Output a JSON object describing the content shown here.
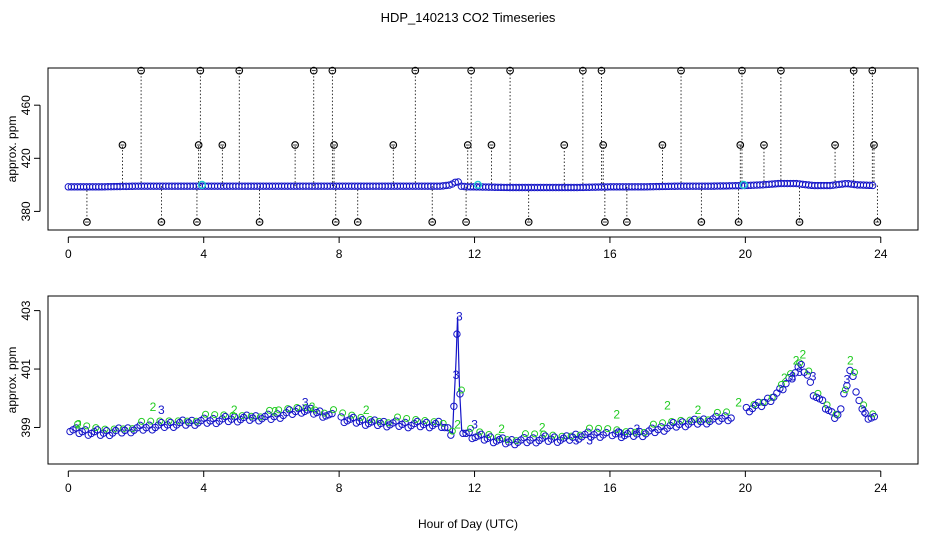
{
  "chart_data": {
    "title": "HDP_140213  CO2 Timeseries",
    "xlabel": "Hour of Day (UTC)",
    "colors": {
      "black": "#000000",
      "blue": "#1414c8",
      "green": "#22cc22",
      "cyan": "#22cccc"
    },
    "panels": [
      {
        "type": "scatter",
        "ylabel": "approx. ppm",
        "xlim": [
          -0.6,
          25.1
        ],
        "ylim": [
          366,
          488
        ],
        "xticks": [
          0,
          4,
          8,
          12,
          16,
          20,
          24
        ],
        "yticks": [
          380,
          420,
          460
        ],
        "baseline": {
          "x": [
            0,
            1,
            2,
            3,
            4,
            5,
            6,
            7,
            8,
            9,
            10,
            11,
            11.3,
            11.5,
            11.6,
            11.8,
            12,
            13,
            14,
            15,
            16,
            17,
            18,
            19,
            20,
            20.5,
            21,
            21.5,
            22,
            22.5,
            23,
            23.3,
            23.8
          ],
          "y": [
            398.5,
            398.5,
            399,
            399,
            399,
            399,
            399,
            399,
            399,
            399,
            399,
            399,
            400,
            403,
            399,
            398.5,
            398.5,
            398,
            398,
            398,
            398.5,
            398.5,
            399,
            399,
            399.5,
            400,
            401,
            401,
            399.5,
            399.5,
            401,
            400,
            399.5
          ]
        },
        "cyan_points": {
          "x": [
            3.95,
            12.1,
            19.95
          ],
          "y": [
            400,
            400,
            400
          ]
        },
        "spikes": {
          "x": [
            0.55,
            1.6,
            2.15,
            2.75,
            3.8,
            3.85,
            3.9,
            4.55,
            5.05,
            5.65,
            6.7,
            7.25,
            7.8,
            7.85,
            7.9,
            8.55,
            9.6,
            10.25,
            10.75,
            11.75,
            11.8,
            11.9,
            12.5,
            13.05,
            13.6,
            14.65,
            15.2,
            15.75,
            15.8,
            15.85,
            16.5,
            17.55,
            18.1,
            18.7,
            19.8,
            19.85,
            19.9,
            20.55,
            21.05,
            21.6,
            22.65,
            23.2,
            23.75,
            23.8,
            23.9
          ],
          "y": [
            372,
            430,
            486,
            372,
            372,
            430,
            486,
            430,
            486,
            372,
            430,
            486,
            486,
            430,
            372,
            372,
            430,
            486,
            372,
            372,
            430,
            486,
            430,
            486,
            372,
            430,
            486,
            486,
            430,
            372,
            372,
            430,
            486,
            372,
            372,
            430,
            486,
            430,
            486,
            372,
            430,
            486,
            486,
            430,
            372
          ]
        }
      },
      {
        "type": "scatter",
        "ylabel": "approx. ppm",
        "xlim": [
          -0.6,
          25.1
        ],
        "ylim": [
          397.75,
          403.5
        ],
        "xticks": [
          0,
          4,
          8,
          12,
          16,
          20,
          24
        ],
        "yticks": [
          399,
          401,
          403
        ],
        "series_circles": {
          "x": [
            0,
            1,
            2,
            3,
            3.9,
            5,
            6,
            6.9,
            7.4,
            8,
            9,
            10,
            11,
            11.35,
            11.45,
            11.5,
            11.55,
            11.62,
            11.75,
            12,
            12.5,
            13,
            14,
            14.7,
            15,
            15.5,
            16,
            16.5,
            17,
            18,
            19,
            19.8,
            20,
            20.5,
            21,
            21.4,
            21.6,
            21.8,
            22,
            22.3,
            22.6,
            22.8,
            23,
            23.1,
            23.3,
            23.5,
            23.8
          ],
          "y": [
            398.9,
            398.8,
            398.95,
            399.1,
            399.2,
            399.3,
            399.35,
            399.6,
            399.5,
            399.3,
            399.15,
            399.1,
            399.1,
            398.8,
            401.2,
            402.8,
            400.5,
            398.9,
            398.8,
            398.7,
            398.6,
            398.5,
            398.6,
            398.6,
            398.7,
            398.75,
            398.8,
            398.75,
            398.8,
            399.1,
            399.25,
            399.4,
            399.6,
            399.8,
            400.2,
            400.8,
            401.1,
            400.9,
            400.2,
            399.8,
            399.4,
            399.5,
            400.5,
            401,
            400.2,
            399.4,
            399.3
          ]
        },
        "labels_green": {
          "x": [
            0.3,
            2.5,
            4.9,
            6.1,
            7.2,
            8.8,
            11.5,
            12.8,
            14,
            16.2,
            17.7,
            18.6,
            19.8,
            21.15,
            21.5,
            21.7,
            23.1
          ],
          "y": [
            399.1,
            399.7,
            399.6,
            399.55,
            399.7,
            399.6,
            399.1,
            398.95,
            399,
            399.45,
            399.75,
            399.6,
            399.85,
            400.7,
            401.3,
            401.5,
            401.3
          ],
          "label": "2"
        },
        "labels_blue": {
          "x": [
            2.75,
            7.0,
            11.45,
            11.55,
            12,
            15,
            15.4,
            16.3,
            16.8,
            21.4,
            21.6,
            22,
            23,
            23.5
          ],
          "y": [
            399.6,
            399.85,
            400.8,
            402.8,
            399.1,
            398.55,
            398.55,
            398.8,
            398.95,
            400.75,
            400.9,
            400.75,
            400.65,
            399.55
          ],
          "label": "3"
        }
      }
    ]
  }
}
